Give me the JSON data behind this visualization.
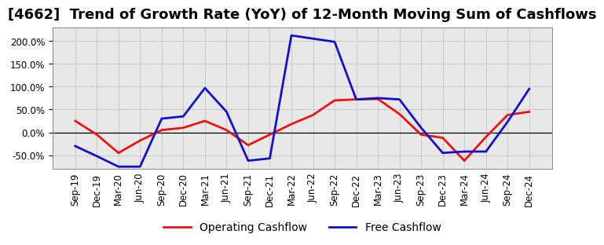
{
  "title": "[4662]  Trend of Growth Rate (YoY) of 12-Month Moving Sum of Cashflows",
  "x_labels": [
    "Sep-19",
    "Dec-19",
    "Mar-20",
    "Jun-20",
    "Sep-20",
    "Dec-20",
    "Mar-21",
    "Jun-21",
    "Sep-21",
    "Dec-21",
    "Mar-22",
    "Jun-22",
    "Sep-22",
    "Dec-22",
    "Mar-23",
    "Jun-23",
    "Sep-23",
    "Dec-23",
    "Mar-24",
    "Jun-24",
    "Sep-24",
    "Dec-24"
  ],
  "operating_cashflow": [
    25,
    -5,
    -45,
    -18,
    5,
    10,
    25,
    5,
    -28,
    -5,
    18,
    38,
    70,
    72,
    73,
    40,
    -5,
    -12,
    -62,
    -10,
    38,
    45
  ],
  "free_cashflow": [
    -30,
    -52,
    -75,
    -75,
    30,
    35,
    97,
    45,
    -62,
    -57,
    212,
    205,
    198,
    72,
    75,
    72,
    10,
    -45,
    -42,
    -42,
    23,
    95
  ],
  "operating_color": "#ee1111",
  "free_color": "#1111cc",
  "background_color": "#ffffff",
  "plot_bg_color": "#e8e8e8",
  "grid_color": "#999999",
  "ylim": [
    -80,
    230
  ],
  "yticks": [
    -50,
    0,
    50,
    100,
    150,
    200
  ],
  "title_fontsize": 13,
  "legend_fontsize": 10,
  "tick_fontsize": 8.5,
  "linewidth": 2.0
}
